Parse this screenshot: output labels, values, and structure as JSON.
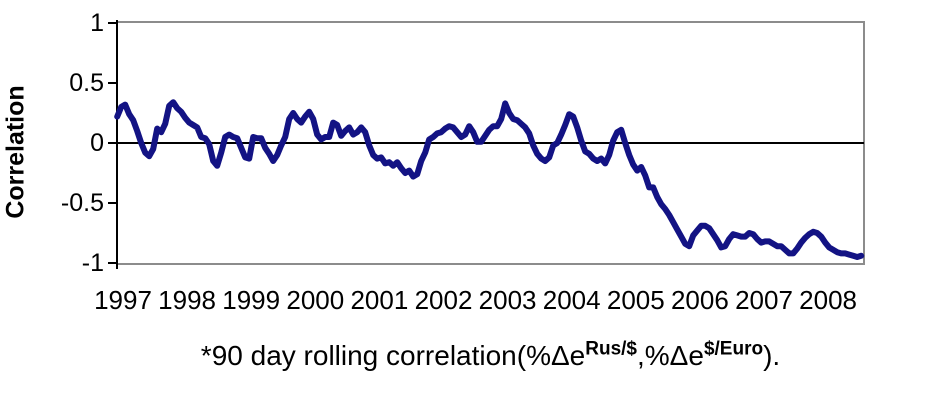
{
  "figure": {
    "background": "#ffffff",
    "caption": {
      "prefix": "*90 day rolling correlation(%Δe",
      "sup1": "Rus/$",
      "mid": ",%Δe",
      "sup2": "$/Euro",
      "suffix": ")."
    }
  },
  "colors": {
    "line": "#131384",
    "plot_border": "#8c8c8c",
    "axis": "#000000",
    "text": "#000000"
  },
  "chart_data": {
    "type": "line",
    "title": "",
    "xlabel": "",
    "ylabel": "Correlation",
    "ylim": [
      -1,
      1
    ],
    "y_ticks": [
      1,
      0.5,
      0,
      -0.5,
      -1
    ],
    "x_ticks": [
      1997,
      1998,
      1999,
      2000,
      2001,
      2002,
      2003,
      2004,
      2005,
      2006,
      2007,
      2008
    ],
    "grid": "zero-line-only",
    "legend_position": "none",
    "series": [
      {
        "name": "90 day rolling correlation(%Δe Rus/$, %Δe $/Euro)",
        "color": "#131384",
        "x_start": 1996.91,
        "x_step": 0.0624,
        "values": [
          0.22,
          0.3,
          0.32,
          0.24,
          0.19,
          0.1,
          0.0,
          -0.08,
          -0.11,
          -0.05,
          0.12,
          0.09,
          0.16,
          0.31,
          0.34,
          0.29,
          0.26,
          0.21,
          0.17,
          0.15,
          0.13,
          0.05,
          0.04,
          -0.01,
          -0.15,
          -0.19,
          -0.08,
          0.05,
          0.07,
          0.05,
          0.04,
          -0.04,
          -0.12,
          -0.13,
          0.05,
          0.04,
          0.04,
          -0.04,
          -0.09,
          -0.15,
          -0.1,
          -0.02,
          0.05,
          0.2,
          0.25,
          0.2,
          0.17,
          0.22,
          0.26,
          0.2,
          0.07,
          0.03,
          0.05,
          0.05,
          0.17,
          0.15,
          0.06,
          0.1,
          0.13,
          0.07,
          0.09,
          0.13,
          0.09,
          -0.02,
          -0.1,
          -0.13,
          -0.12,
          -0.17,
          -0.16,
          -0.19,
          -0.16,
          -0.21,
          -0.25,
          -0.23,
          -0.28,
          -0.26,
          -0.15,
          -0.08,
          0.03,
          0.05,
          0.08,
          0.09,
          0.12,
          0.14,
          0.13,
          0.09,
          0.05,
          0.07,
          0.14,
          0.09,
          0.01,
          0.01,
          0.06,
          0.11,
          0.14,
          0.14,
          0.2,
          0.33,
          0.25,
          0.2,
          0.19,
          0.16,
          0.13,
          0.08,
          -0.02,
          -0.09,
          -0.13,
          -0.15,
          -0.12,
          -0.02,
          0.0,
          0.07,
          0.15,
          0.24,
          0.22,
          0.13,
          0.02,
          -0.07,
          -0.09,
          -0.13,
          -0.15,
          -0.13,
          -0.17,
          -0.1,
          0.02,
          0.09,
          0.11,
          0.0,
          -0.1,
          -0.18,
          -0.23,
          -0.2,
          -0.27,
          -0.37,
          -0.37,
          -0.45,
          -0.51,
          -0.55,
          -0.6,
          -0.66,
          -0.72,
          -0.78,
          -0.84,
          -0.86,
          -0.77,
          -0.73,
          -0.69,
          -0.69,
          -0.71,
          -0.76,
          -0.81,
          -0.87,
          -0.86,
          -0.8,
          -0.76,
          -0.77,
          -0.78,
          -0.78,
          -0.75,
          -0.76,
          -0.8,
          -0.83,
          -0.82,
          -0.82,
          -0.84,
          -0.86,
          -0.86,
          -0.89,
          -0.92,
          -0.92,
          -0.88,
          -0.83,
          -0.79,
          -0.76,
          -0.74,
          -0.75,
          -0.78,
          -0.83,
          -0.87,
          -0.89,
          -0.91,
          -0.92,
          -0.92,
          -0.93,
          -0.94,
          -0.95,
          -0.94
        ]
      }
    ]
  }
}
